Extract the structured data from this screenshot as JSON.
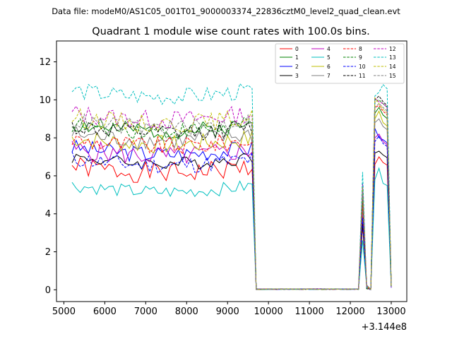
{
  "figure": {
    "suptitle": "Data file: modeM0/AS1C05_001T01_9000003374_22836cztM0_level2_quad_clean.evt"
  },
  "chart_data": {
    "type": "line",
    "title": "Quadrant 1 module wise count rates with 100.0s bins.",
    "xlabel": "",
    "ylabel": "",
    "x_offset_label": "+3.144e8",
    "xlim": [
      4820,
      13380
    ],
    "ylim": [
      -0.62,
      13.1
    ],
    "xticks": [
      5000,
      6000,
      7000,
      8000,
      9000,
      10000,
      11000,
      12000,
      13000
    ],
    "yticks": [
      0,
      2,
      4,
      6,
      8,
      10,
      12
    ],
    "grid": false,
    "legend": {
      "placement": "top-right",
      "columns": 4
    },
    "x_seg1": {
      "start": 5200,
      "end": 9600,
      "step": 100
    },
    "x_gap": [
      9700,
      9800,
      9900,
      10000,
      10100,
      10200,
      10300,
      10400,
      10500,
      10600,
      10700,
      10800,
      10900,
      11000,
      11100,
      11200,
      11300,
      11400,
      11500,
      11600,
      11700,
      11800,
      11900,
      12000,
      12100,
      12200
    ],
    "x_seg3": [
      12300,
      12400,
      12500,
      12600,
      12700,
      12800,
      12900,
      13000
    ],
    "series": [
      {
        "name": "0",
        "color": "#ff0000",
        "dash": "solid",
        "base": 6.5,
        "amp": 0.55,
        "seed": 1,
        "spike": 3.4,
        "peaks": [
          6.6,
          7.0,
          6.7
        ]
      },
      {
        "name": "1",
        "color": "#008000",
        "dash": "solid",
        "base": 8.7,
        "amp": 0.45,
        "seed": 2,
        "spike": 4.4,
        "peaks": [
          9.3,
          9.6,
          9.2
        ]
      },
      {
        "name": "2",
        "color": "#0000ff",
        "dash": "solid",
        "base": 7.5,
        "amp": 0.45,
        "seed": 3,
        "spike": 4.0,
        "peaks": [
          8.5,
          8.0,
          7.9
        ]
      },
      {
        "name": "3",
        "color": "#000000",
        "dash": "solid",
        "base": 7.0,
        "amp": 0.35,
        "seed": 4,
        "spike": 3.5,
        "peaks": [
          7.2,
          7.3,
          7.1
        ]
      },
      {
        "name": "4",
        "color": "#bf00bf",
        "dash": "solid",
        "base": 7.4,
        "amp": 0.55,
        "seed": 5,
        "spike": 4.2,
        "peaks": [
          8.0,
          8.2,
          7.8
        ]
      },
      {
        "name": "5",
        "color": "#00bfbf",
        "dash": "solid",
        "base": 5.5,
        "amp": 0.35,
        "seed": 6,
        "spike": 2.6,
        "peaks": [
          5.8,
          6.4,
          5.6
        ]
      },
      {
        "name": "6",
        "color": "#bfbf00",
        "dash": "solid",
        "base": 8.0,
        "amp": 0.5,
        "seed": 7,
        "spike": 4.6,
        "peaks": [
          9.0,
          9.4,
          8.8
        ]
      },
      {
        "name": "7",
        "color": "#808080",
        "dash": "solid",
        "base": 8.2,
        "amp": 0.5,
        "seed": 8,
        "spike": 4.5,
        "peaks": [
          8.8,
          9.0,
          8.6
        ]
      },
      {
        "name": "8",
        "color": "#ff0000",
        "dash": "dashed",
        "base": 7.9,
        "amp": 0.5,
        "seed": 9,
        "spike": 4.6,
        "peaks": [
          9.6,
          9.7,
          9.4
        ]
      },
      {
        "name": "9",
        "color": "#008000",
        "dash": "dashed",
        "base": 8.7,
        "amp": 0.45,
        "seed": 10,
        "spike": 5.0,
        "peaks": [
          9.9,
          10.0,
          9.8
        ]
      },
      {
        "name": "10",
        "color": "#0000ff",
        "dash": "dashed",
        "base": 6.9,
        "amp": 0.45,
        "seed": 11,
        "spike": 3.8,
        "peaks": [
          7.8,
          8.1,
          7.7
        ]
      },
      {
        "name": "11",
        "color": "#000000",
        "dash": "dashed",
        "base": 8.6,
        "amp": 0.45,
        "seed": 12,
        "spike": 5.3,
        "peaks": [
          10.0,
          10.2,
          9.9
        ]
      },
      {
        "name": "12",
        "color": "#bf00bf",
        "dash": "dashed",
        "base": 9.3,
        "amp": 0.5,
        "seed": 13,
        "spike": 5.6,
        "peaks": [
          10.1,
          9.9,
          9.8
        ]
      },
      {
        "name": "13",
        "color": "#00bfbf",
        "dash": "dashed",
        "base": 10.5,
        "amp": 0.45,
        "seed": 14,
        "spike": 6.2,
        "peaks": [
          10.2,
          10.4,
          10.8
        ]
      },
      {
        "name": "14",
        "color": "#bfbf00",
        "dash": "dashed",
        "base": 9.1,
        "amp": 0.5,
        "seed": 15,
        "spike": 5.4,
        "peaks": [
          10.1,
          9.8,
          9.5
        ]
      },
      {
        "name": "15",
        "color": "#808080",
        "dash": "dashed",
        "base": 8.9,
        "amp": 0.45,
        "seed": 16,
        "spike": 5.2,
        "peaks": [
          9.6,
          9.8,
          9.6
        ]
      }
    ]
  }
}
